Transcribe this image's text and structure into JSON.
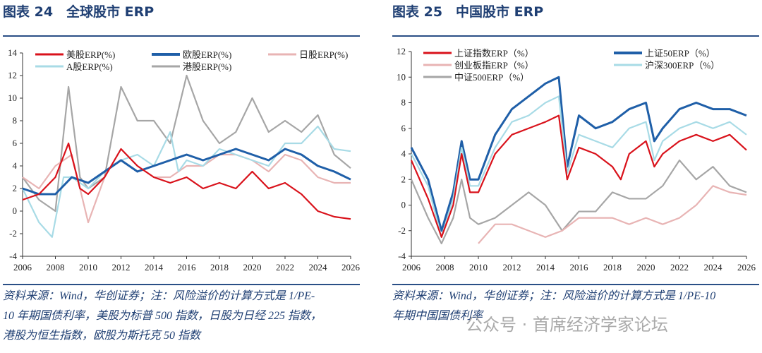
{
  "left": {
    "title": "图表 24　全球股市 ERP",
    "note": [
      "资料来源：Wind，华创证券；注：风险溢价的计算方式是 1/PE-",
      "10 年期国债利率，美股为标普 500 指数，日股为日经 225 指数，",
      "港股为恒生指数，欧股为斯托克 50 指数"
    ]
  },
  "right": {
    "title": "图表 25　中国股市 ERP",
    "note": [
      "资料来源：Wind，华创证券；注：风险溢价的计算方式是 1/PE-10",
      "年期中国国债利率"
    ]
  },
  "watermark": "公众号 · 首席经济学家论坛",
  "chart_data": [
    {
      "type": "line",
      "title": "全球股市 ERP",
      "xlim": [
        2006,
        2026
      ],
      "ylim": [
        -4,
        14
      ],
      "xticks": [
        2006,
        2008,
        2010,
        2012,
        2014,
        2016,
        2018,
        2020,
        2022,
        2024,
        2026
      ],
      "yticks": [
        -4,
        -2,
        0,
        2,
        4,
        6,
        8,
        10,
        12,
        14
      ],
      "legend_placement": "top",
      "series": [
        {
          "name": "港股ERP(%)",
          "color": "#a6a6a6",
          "x": [
            2006,
            2007,
            2008,
            2008.8,
            2009.5,
            2010,
            2011,
            2012,
            2013,
            2014,
            2015,
            2016,
            2017,
            2018,
            2019,
            2020,
            2021,
            2022,
            2023,
            2024,
            2025,
            2026
          ],
          "y": [
            3,
            1,
            0,
            11,
            3,
            2,
            3,
            11,
            8,
            8,
            6,
            12,
            8,
            6,
            7,
            10,
            7,
            8,
            7,
            8.5,
            5,
            3.8
          ]
        },
        {
          "name": "日股ERP(%)",
          "color": "#e8b4b4",
          "x": [
            2006,
            2007,
            2008,
            2009,
            2010,
            2011,
            2012,
            2013,
            2014,
            2015,
            2016,
            2017,
            2018,
            2019,
            2020,
            2021,
            2022,
            2023,
            2024,
            2025,
            2026
          ],
          "y": [
            3,
            2,
            4,
            5,
            -1,
            3,
            5.5,
            4,
            3,
            3,
            4,
            4,
            5,
            5,
            4.5,
            3.5,
            5,
            4.5,
            3,
            2.5,
            2.5
          ]
        },
        {
          "name": "A股ERP(%)",
          "color": "#a8dbe6",
          "x": [
            2006,
            2007,
            2007.8,
            2008.5,
            2009,
            2010,
            2011,
            2012,
            2013,
            2014,
            2015,
            2015.5,
            2016,
            2017,
            2018,
            2019,
            2020,
            2021,
            2022,
            2023,
            2024,
            2025,
            2026
          ],
          "y": [
            2,
            -1,
            -2.3,
            3,
            3,
            2,
            3.5,
            4.5,
            5,
            4,
            7,
            3.5,
            4.5,
            4,
            5.5,
            5,
            4.5,
            4,
            6,
            6,
            7.5,
            5.5,
            5.3
          ]
        },
        {
          "name": "欧股ERP(%)",
          "color": "#1f5fa8",
          "x": [
            2006,
            2007,
            2008,
            2009,
            2010,
            2011,
            2012,
            2013,
            2014,
            2015,
            2016,
            2017,
            2018,
            2019,
            2020,
            2021,
            2022,
            2023,
            2024,
            2025,
            2026
          ],
          "y": [
            2,
            1.5,
            1.5,
            3,
            2.5,
            3.5,
            4.5,
            3.5,
            4,
            4.5,
            5,
            4.5,
            5,
            5.5,
            5,
            4.5,
            5.5,
            5,
            4,
            3.5,
            2.8
          ]
        },
        {
          "name": "美股ERP(%)",
          "color": "#d9121b",
          "x": [
            2006,
            2007,
            2008,
            2008.8,
            2009.5,
            2010,
            2011,
            2012,
            2013,
            2014,
            2015,
            2016,
            2017,
            2018,
            2019,
            2020,
            2021,
            2022,
            2023,
            2024,
            2025,
            2026
          ],
          "y": [
            1,
            1.5,
            3,
            6,
            2,
            1.5,
            3,
            5.5,
            4,
            3,
            2.5,
            3,
            2,
            2.5,
            2,
            3.5,
            2,
            2.5,
            1.5,
            0,
            -0.5,
            -0.7
          ]
        }
      ],
      "legend_order": [
        "美股ERP(%)",
        "欧股ERP(%)",
        "日股ERP(%)",
        "A股ERP(%)",
        "港股ERP(%)"
      ]
    },
    {
      "type": "line",
      "title": "中国股市 ERP",
      "xlim": [
        2006,
        2026
      ],
      "ylim": [
        -4,
        12
      ],
      "xticks": [
        2006,
        2008,
        2010,
        2012,
        2014,
        2016,
        2018,
        2020,
        2022,
        2024,
        2026
      ],
      "yticks": [
        -4,
        -2,
        0,
        2,
        4,
        6,
        8,
        10,
        12
      ],
      "legend_placement": "top",
      "series": [
        {
          "name": "中证500ERP（%）",
          "color": "#a6a6a6",
          "x": [
            2006,
            2007,
            2007.8,
            2008.5,
            2009,
            2009.5,
            2010,
            2011,
            2012,
            2013,
            2014,
            2015,
            2016,
            2017,
            2018,
            2019,
            2020,
            2021,
            2022,
            2023,
            2024,
            2025,
            2026
          ],
          "y": [
            2,
            -1,
            -3,
            -1,
            2,
            -1,
            -1.5,
            -1,
            0,
            1,
            0,
            -2,
            -0.5,
            -0.5,
            1,
            0.5,
            0.5,
            1.5,
            3.5,
            2,
            3,
            1.5,
            1
          ]
        },
        {
          "name": "创业板指ERP（%）",
          "color": "#e8b4b4",
          "x": [
            2010,
            2011,
            2012,
            2013,
            2014,
            2015,
            2016,
            2017,
            2018,
            2019,
            2020,
            2021,
            2022,
            2023,
            2024,
            2025,
            2026
          ],
          "y": [
            -3,
            -1.5,
            -1.5,
            -2,
            -2.5,
            -2,
            -1,
            -1,
            -1,
            -1.5,
            -1,
            -1.5,
            -1,
            0,
            1.5,
            1,
            0.8
          ]
        },
        {
          "name": "上证50ERP（%）",
          "color": "#1f5fa8",
          "x": [
            2006,
            2007,
            2007.8,
            2008.5,
            2009,
            2009.5,
            2010,
            2011,
            2012,
            2013,
            2014,
            2014.8,
            2015.3,
            2016,
            2017,
            2018,
            2019,
            2020,
            2020.5,
            2021,
            2022,
            2023,
            2024,
            2025,
            2026
          ],
          "y": [
            4.5,
            2,
            -2,
            1,
            5,
            2,
            2,
            5.5,
            7.5,
            8.5,
            9.5,
            10,
            3,
            7,
            6,
            6.5,
            7.5,
            8,
            5,
            6,
            7.5,
            8,
            7.5,
            7.5,
            7
          ]
        },
        {
          "name": "沪深300ERP（%）",
          "color": "#a8dbe6",
          "x": [
            2006,
            2007,
            2007.8,
            2008.5,
            2009,
            2009.5,
            2010,
            2011,
            2012,
            2013,
            2014,
            2014.8,
            2015.3,
            2016,
            2017,
            2018,
            2019,
            2020,
            2020.5,
            2021,
            2022,
            2023,
            2024,
            2025,
            2026
          ],
          "y": [
            4,
            1.5,
            -2.5,
            0.5,
            4.5,
            1.5,
            1.5,
            4.5,
            6.5,
            7,
            8,
            8.5,
            2.5,
            5.5,
            5,
            4.5,
            6,
            6.5,
            3.5,
            5,
            6,
            6.5,
            6,
            6.5,
            5.5
          ]
        },
        {
          "name": "上证指数ERP（%）",
          "color": "#d9121b",
          "x": [
            2006,
            2007,
            2007.8,
            2008.5,
            2009,
            2009.5,
            2010,
            2011,
            2012,
            2013,
            2014,
            2014.8,
            2015.3,
            2016,
            2017,
            2018,
            2018.5,
            2019,
            2020,
            2020.5,
            2021,
            2022,
            2023,
            2024,
            2025,
            2026
          ],
          "y": [
            3.5,
            0.5,
            -2.5,
            0,
            4,
            1,
            1,
            4,
            5.5,
            6,
            6.5,
            7,
            2,
            4.5,
            4,
            3,
            2,
            4,
            5,
            3,
            4,
            5,
            5.5,
            5,
            5.5,
            4.3
          ]
        }
      ],
      "legend_order": [
        "上证指数ERP（%）",
        "上证50ERP（%）",
        "创业板指ERP（%）",
        "沪深300ERP（%）",
        "中证500ERP（%）"
      ]
    }
  ]
}
